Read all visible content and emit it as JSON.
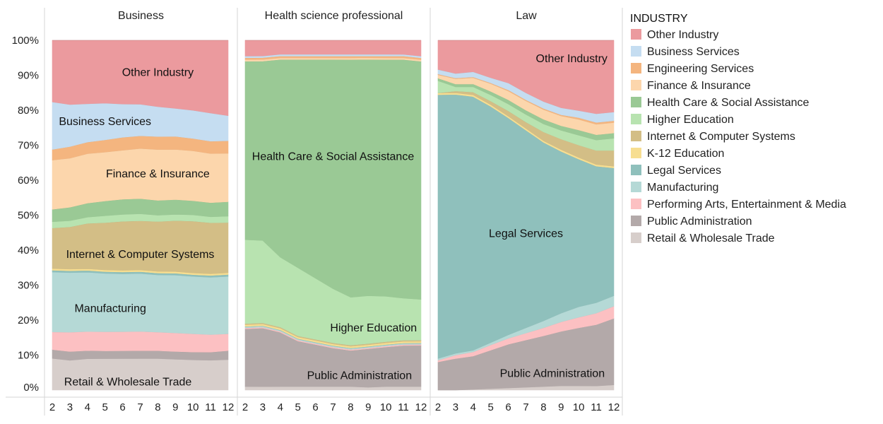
{
  "chart_data": {
    "type": "area",
    "stacked_percent": true,
    "x": [
      2,
      3,
      4,
      5,
      6,
      7,
      8,
      9,
      10,
      11,
      12
    ],
    "y_ticks": [
      "0%",
      "10%",
      "20%",
      "30%",
      "40%",
      "50%",
      "60%",
      "70%",
      "80%",
      "90%",
      "100%"
    ],
    "ylim": [
      0,
      100
    ],
    "legend": {
      "title": "INDUSTRY",
      "items": [
        {
          "name": "Other Industry",
          "color": "#EB9A9E"
        },
        {
          "name": "Business Services",
          "color": "#C5DDF1"
        },
        {
          "name": "Engineering Services",
          "color": "#F4B57F"
        },
        {
          "name": "Finance & Insurance",
          "color": "#FCD6AC"
        },
        {
          "name": "Health Care & Social Assistance",
          "color": "#9AC995"
        },
        {
          "name": "Higher Education",
          "color": "#B8E3B0"
        },
        {
          "name": "Internet & Computer Systems",
          "color": "#D3BE86"
        },
        {
          "name": "K-12 Education",
          "color": "#F7DE91"
        },
        {
          "name": "Legal Services",
          "color": "#8FC0BC"
        },
        {
          "name": "Manufacturing",
          "color": "#B5D9D6"
        },
        {
          "name": "Performing Arts, Entertainment & Media",
          "color": "#FCC0C2"
        },
        {
          "name": "Public Administration",
          "color": "#B3A9A9"
        },
        {
          "name": "Retail & Wholesale Trade",
          "color": "#D7CECB"
        }
      ]
    },
    "panels": [
      {
        "title": "Business",
        "series": {
          "Retail & Wholesale Trade": [
            9,
            8.5,
            9,
            9,
            9,
            9,
            9,
            8.8,
            8.6,
            8.5,
            8.5
          ],
          "Public Administration": [
            2.5,
            2.5,
            2.3,
            2.2,
            2.2,
            2.2,
            2.2,
            2.2,
            2.2,
            2.3,
            2.5
          ],
          "Performing Arts, Entertainment & Media": [
            5,
            5.5,
            5.5,
            5.5,
            5.5,
            5.5,
            5.3,
            5.3,
            5.2,
            5,
            4.7
          ],
          "Manufacturing": [
            17,
            17,
            17,
            16.7,
            16.5,
            16.5,
            16.3,
            16.5,
            16.3,
            16.3,
            16
          ],
          "Legal Services": [
            0.5,
            0.5,
            0.5,
            0.5,
            0.5,
            0.5,
            0.5,
            0.5,
            0.5,
            0.5,
            0.5
          ],
          "K-12 Education": [
            0.5,
            0.5,
            0.5,
            0.5,
            0.5,
            0.5,
            0.5,
            0.5,
            0.5,
            0.5,
            0.5
          ],
          "Internet & Computer Systems": [
            11.5,
            12,
            13,
            13.5,
            14,
            14,
            14.2,
            14.5,
            14.7,
            14.5,
            14
          ],
          "Higher Education": [
            1.8,
            1.8,
            1.8,
            2,
            2,
            2,
            1.8,
            1.8,
            1.8,
            1.7,
            1.8
          ],
          "Health Care & Social Assistance": [
            3.5,
            3.8,
            4,
            4.2,
            4.3,
            4.3,
            4.2,
            4.2,
            4,
            4,
            4
          ],
          "Finance & Insurance": [
            14,
            14,
            14.2,
            14,
            14,
            14.3,
            14.5,
            14.3,
            14.2,
            14,
            13.5
          ],
          "Engineering Services": [
            3,
            3.3,
            3.3,
            3.5,
            3.7,
            3.6,
            3.7,
            3.7,
            3.5,
            3.5,
            3.5
          ],
          "Business Services": [
            13.5,
            12,
            11,
            10.5,
            9.5,
            9,
            8.5,
            8,
            8,
            8,
            7
          ],
          "Other Industry": [
            17.5,
            18.3,
            18.2,
            18,
            18.2,
            18.2,
            18.9,
            19.4,
            19.9,
            20.7,
            21
          ]
        },
        "area_labels": [
          {
            "series": "Other Industry",
            "text": "Other Industry",
            "x": 8,
            "y": 91
          },
          {
            "series": "Business Services",
            "text": "Business Services",
            "x": 5,
            "y": 77
          },
          {
            "series": "Finance & Insurance",
            "text": "Finance & Insurance",
            "x": 8,
            "y": 62
          },
          {
            "series": "Internet & Computer Systems",
            "text": "Internet & Computer Systems",
            "x": 7,
            "y": 39
          },
          {
            "series": "Manufacturing",
            "text": "Manufacturing",
            "x": 5.3,
            "y": 23.5
          },
          {
            "series": "Retail & Wholesale Trade",
            "text": "Retail & Wholesale Trade",
            "x": 6.3,
            "y": 2.5
          }
        ]
      },
      {
        "title": "Health science professional",
        "series": {
          "Retail & Wholesale Trade": [
            1,
            1,
            1,
            1,
            1,
            1,
            1,
            0.8,
            1,
            1,
            1
          ],
          "Public Administration": [
            16.5,
            16.8,
            15.5,
            13,
            12,
            11,
            10.3,
            11,
            11.3,
            11.7,
            11.7
          ],
          "Performing Arts, Entertainment & Media": [
            0.3,
            0.3,
            0.3,
            0.3,
            0.3,
            0.3,
            0.3,
            0.3,
            0.3,
            0.3,
            0.3
          ],
          "Manufacturing": [
            0.3,
            0.3,
            0.3,
            0.3,
            0.3,
            0.3,
            0.3,
            0.3,
            0.3,
            0.3,
            0.3
          ],
          "Legal Services": [
            0.1,
            0.1,
            0.1,
            0.1,
            0.1,
            0.1,
            0.1,
            0.1,
            0.1,
            0.1,
            0.1
          ],
          "K-12 Education": [
            0.5,
            0.5,
            0.5,
            0.5,
            0.5,
            0.5,
            0.5,
            0.5,
            0.5,
            0.5,
            0.5
          ],
          "Internet & Computer Systems": [
            0.3,
            0.3,
            0.3,
            0.3,
            0.3,
            0.3,
            0.3,
            0.3,
            0.3,
            0.3,
            0.3
          ],
          "Higher Education": [
            24,
            23.7,
            20,
            19.5,
            17.5,
            15.5,
            13.7,
            13.7,
            13,
            12,
            11.6
          ],
          "Health Care & Social Assistance": [
            51,
            51.5,
            56.5,
            59.5,
            62.5,
            65.5,
            67.8,
            67.6,
            67.6,
            68,
            67.7
          ],
          "Finance & Insurance": [
            0.5,
            0.5,
            0.5,
            0.5,
            0.5,
            0.5,
            0.5,
            0.5,
            0.5,
            0.5,
            0.5
          ],
          "Engineering Services": [
            0.5,
            0.5,
            0.5,
            0.5,
            0.5,
            0.5,
            0.5,
            0.5,
            0.5,
            0.5,
            0.5
          ],
          "Business Services": [
            0.5,
            0.5,
            0.5,
            0.5,
            0.5,
            0.5,
            0.5,
            0.5,
            0.5,
            0.5,
            0.5
          ],
          "Other Industry": [
            4.5,
            4.5,
            4,
            4,
            4,
            4,
            4,
            4,
            4,
            4,
            4.5
          ]
        },
        "area_labels": [
          {
            "series": "Health Care & Social Assistance",
            "text": "Health Care & Social Assistance",
            "x": 7,
            "y": 67
          },
          {
            "series": "Higher Education",
            "text": "Higher Education",
            "x": 9.3,
            "y": 18
          },
          {
            "series": "Public Administration",
            "text": "Public Administration",
            "x": 8.5,
            "y": 4.3
          }
        ]
      },
      {
        "title": "Law",
        "series": {
          "Retail & Wholesale Trade": [
            0,
            0,
            0.2,
            0.4,
            0.6,
            0.8,
            1,
            1.2,
            1.2,
            1.2,
            1.5
          ],
          "Public Administration": [
            8,
            9,
            9.5,
            11,
            12.5,
            13.5,
            14.5,
            15.5,
            16.5,
            17.5,
            19
          ],
          "Performing Arts, Entertainment & Media": [
            0.5,
            1,
            1.2,
            1.5,
            1.7,
            2,
            2.3,
            2.7,
            3,
            3.3,
            3.5
          ],
          "Manufacturing": [
            0.5,
            0.5,
            0.5,
            0.7,
            1,
            1.5,
            2,
            2.5,
            3,
            3,
            3
          ],
          "Legal Services": [
            75,
            74,
            72.5,
            67.5,
            62,
            56.5,
            51,
            46,
            42,
            39,
            36.5
          ],
          "K-12 Education": [
            0.5,
            0.5,
            0.5,
            0.5,
            0.5,
            0.5,
            0.5,
            0.5,
            0.5,
            0.5,
            0.5
          ],
          "Internet & Computer Systems": [
            0,
            0.5,
            0.8,
            1,
            1.5,
            1.8,
            2.5,
            3,
            3.5,
            4,
            4.5
          ],
          "Higher Education": [
            3.5,
            1.2,
            1.5,
            1.8,
            2,
            2.2,
            2.3,
            2.5,
            2.8,
            3,
            3.5
          ],
          "Health Care & Social Assistance": [
            0.7,
            0.8,
            0.8,
            1,
            1.2,
            1.2,
            1.3,
            1.3,
            1.5,
            1.5,
            1.5
          ],
          "Finance & Insurance": [
            1,
            1.5,
            1.8,
            2.2,
            2.5,
            2.7,
            2.8,
            2.8,
            3,
            3,
            3
          ],
          "Engineering Services": [
            0.2,
            0.2,
            0.2,
            0.2,
            0.3,
            0.3,
            0.3,
            0.3,
            0.5,
            0.5,
            0.5
          ],
          "Business Services": [
            1.3,
            1.3,
            1.5,
            1.5,
            2,
            2,
            2,
            2,
            2,
            2.5,
            2.5
          ],
          "Other Industry": [
            8.3,
            9.5,
            9,
            10.7,
            12.2,
            15,
            17.5,
            19.2,
            20,
            21,
            20.5
          ]
        },
        "area_labels": [
          {
            "series": "Other Industry",
            "text": "Other Industry",
            "x": 9.6,
            "y": 95
          },
          {
            "series": "Legal Services",
            "text": "Legal Services",
            "x": 7,
            "y": 45
          },
          {
            "series": "Public Administration",
            "text": "Public Administration",
            "x": 8.5,
            "y": 5
          }
        ]
      }
    ]
  }
}
